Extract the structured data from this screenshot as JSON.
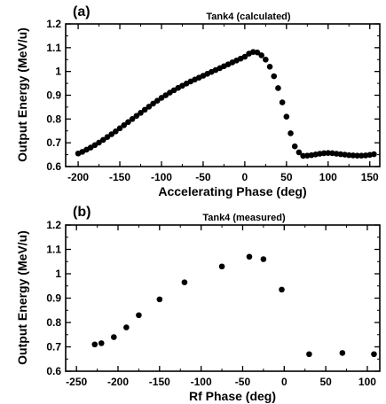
{
  "chart_data": [
    {
      "type": "scatter",
      "panel_label": "(a)",
      "title": "Tank4  (calculated)",
      "xlabel": "Accelerating Phase (deg)",
      "ylabel": "Output Energy (MeV/u)",
      "xlim": [
        -215,
        162
      ],
      "ylim": [
        0.6,
        1.2
      ],
      "xticks": [
        -200,
        -150,
        -100,
        -50,
        0,
        50,
        100,
        150
      ],
      "yticks": [
        0.6,
        0.7,
        0.8,
        0.9,
        1,
        1.1,
        1.2
      ],
      "xtick_labels": [
        "-200",
        "-150",
        "-100",
        "-50",
        "0",
        "50",
        "100",
        "150"
      ],
      "ytick_labels": [
        "0.6",
        "0.7",
        "0.8",
        "0.9",
        "1",
        "1.1",
        "1.2"
      ],
      "grid": false,
      "marker_color": "#000000",
      "series": [
        {
          "x": [
            -200,
            -195,
            -190,
            -185,
            -180,
            -175,
            -170,
            -165,
            -160,
            -155,
            -150,
            -145,
            -140,
            -135,
            -130,
            -125,
            -120,
            -115,
            -110,
            -105,
            -100,
            -95,
            -90,
            -85,
            -80,
            -75,
            -70,
            -65,
            -60,
            -55,
            -50,
            -45,
            -40,
            -35,
            -30,
            -25,
            -20,
            -15,
            -10,
            -5,
            0,
            5,
            10,
            15,
            20,
            25,
            30,
            35,
            40,
            45,
            50,
            55,
            60,
            65,
            70,
            75,
            80,
            85,
            90,
            95,
            100,
            105,
            110,
            115,
            120,
            125,
            130,
            135,
            140,
            145,
            150,
            155
          ],
          "y": [
            0.655,
            0.662,
            0.671,
            0.68,
            0.69,
            0.701,
            0.712,
            0.724,
            0.736,
            0.748,
            0.761,
            0.774,
            0.787,
            0.8,
            0.813,
            0.826,
            0.839,
            0.852,
            0.865,
            0.877,
            0.889,
            0.9,
            0.911,
            0.921,
            0.931,
            0.94,
            0.949,
            0.958,
            0.966,
            0.974,
            0.982,
            0.99,
            0.998,
            1.006,
            1.014,
            1.022,
            1.03,
            1.038,
            1.046,
            1.054,
            1.062,
            1.075,
            1.082,
            1.08,
            1.068,
            1.05,
            1.02,
            0.98,
            0.93,
            0.87,
            0.81,
            0.74,
            0.685,
            0.66,
            0.645,
            0.646,
            0.648,
            0.651,
            0.654,
            0.656,
            0.657,
            0.656,
            0.654,
            0.652,
            0.65,
            0.648,
            0.647,
            0.646,
            0.646,
            0.647,
            0.649,
            0.652
          ]
        }
      ]
    },
    {
      "type": "scatter",
      "panel_label": "(b)",
      "title": "Tank4  (measured)",
      "xlabel": "Rf Phase (deg)",
      "ylabel": "Output Energy (MeV/u)",
      "xlim": [
        -263,
        115
      ],
      "ylim": [
        0.6,
        1.2
      ],
      "xticks": [
        -250,
        -200,
        -150,
        -100,
        -50,
        0,
        50,
        100
      ],
      "yticks": [
        0.6,
        0.7,
        0.8,
        0.9,
        1,
        1.1,
        1.2
      ],
      "xtick_labels": [
        "-250",
        "-200",
        "-150",
        "-100",
        "-50",
        "0",
        "50",
        "100"
      ],
      "ytick_labels": [
        "0.6",
        "0.7",
        "0.8",
        "0.9",
        "1",
        "1.1",
        "1.2"
      ],
      "grid": false,
      "marker_color": "#000000",
      "series": [
        {
          "x": [
            -228,
            -220,
            -205,
            -190,
            -175,
            -150,
            -120,
            -75,
            -42,
            -25,
            -3,
            30,
            70,
            108
          ],
          "y": [
            0.71,
            0.715,
            0.74,
            0.78,
            0.83,
            0.895,
            0.965,
            1.03,
            1.07,
            1.06,
            0.935,
            0.67,
            0.675,
            0.67
          ]
        }
      ]
    }
  ]
}
